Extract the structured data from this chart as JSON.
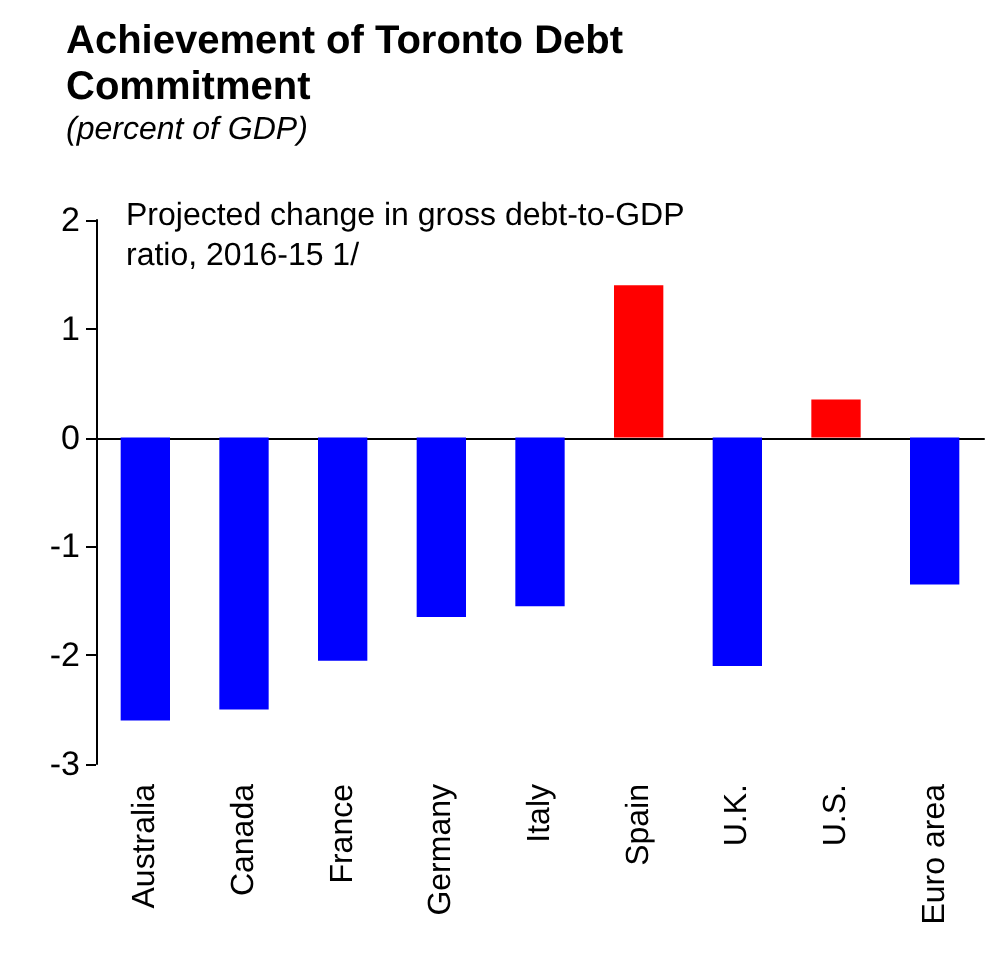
{
  "chart_data": {
    "type": "bar",
    "title": "Achievement of Toronto Debt Commitment",
    "subtitle": "(percent of GDP)",
    "annotations": [
      "Projected change in gross debt-to-GDP ratio, 2016-15 1/"
    ],
    "categories": [
      "Australia",
      "Canada",
      "France",
      "Germany",
      "Italy",
      "Spain",
      "U.K.",
      "U.S.",
      "Euro area"
    ],
    "values": [
      -2.6,
      -2.5,
      -2.05,
      -1.65,
      -1.55,
      1.4,
      -2.1,
      0.35,
      -1.35
    ],
    "colors": [
      "#0000ff",
      "#0000ff",
      "#0000ff",
      "#0000ff",
      "#0000ff",
      "#ff0000",
      "#0000ff",
      "#ff0000",
      "#0000ff"
    ],
    "ylim": [
      -3,
      2
    ],
    "yticks": [
      -3,
      -2,
      -1,
      0,
      1,
      2
    ]
  }
}
